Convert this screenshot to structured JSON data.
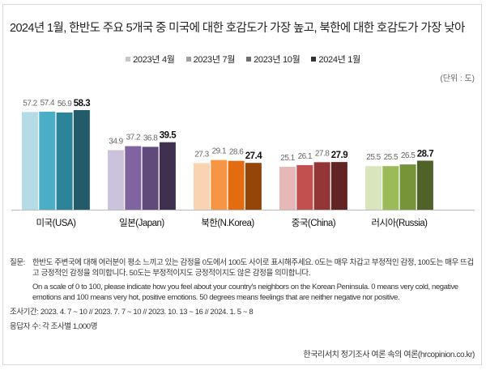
{
  "chart_data": {
    "type": "bar",
    "title": "2024년 1월, 한반도 주요 5개국 중 미국에 대한 호감도가 가장 높고, 북한에 대한 호감도가 가장 낮아",
    "unit": "(단위 : 도)",
    "categories": [
      "미국(USA)",
      "일본(Japan)",
      "북한(N.Korea)",
      "중국(China)",
      "러시아(Russia)"
    ],
    "series": [
      {
        "name": "2023년 4월",
        "values": [
          57.2,
          34.9,
          27.3,
          25.1,
          25.5
        ]
      },
      {
        "name": "2023년 7월",
        "values": [
          57.4,
          37.2,
          29.1,
          26.1,
          25.5
        ]
      },
      {
        "name": "2023년 10월",
        "values": [
          56.9,
          36.8,
          28.6,
          27.8,
          26.5
        ]
      },
      {
        "name": "2024년 1월",
        "values": [
          58.3,
          39.5,
          27.4,
          27.9,
          28.7
        ]
      }
    ],
    "ylim": [
      0,
      60
    ],
    "legend_position": "top-center",
    "legend_colors": [
      "#c8c8c8",
      "#a0a0a0",
      "#6e6e6e",
      "#333333"
    ],
    "colors": [
      [
        "#b5dce6",
        "#4aaec6",
        "#2c849b",
        "#225c6b"
      ],
      [
        "#cdc2dc",
        "#8163a0",
        "#5f4a7b",
        "#3f3050"
      ],
      [
        "#fad3b3",
        "#f69644",
        "#e36b10",
        "#964509"
      ],
      [
        "#e8b8b8",
        "#c1504f",
        "#943636",
        "#632424"
      ],
      [
        "#d8e5bd",
        "#9bbb59",
        "#779438",
        "#4f6228"
      ]
    ]
  },
  "notes": {
    "question_label": "질문:",
    "question_ko": "한반도 주변국에 대해 여러분이 평소 느끼고 있는 감정을 0도에서 100도 사이로 표시해주세요. 0도는 매우 차갑고 부정적인 감정, 100도는 매우 뜨겁고 긍정적인 감정을 의미합니다. 50도는 부정적이지도 긍정적이지도 않은 감정을 의미합니다.",
    "question_en": "On a scale of 0 to 100, please indicate how you feel about your country's neighbors on the Korean Peninsula. 0 means very cold, negative emotions and 100 means very hot, positive emotions. 50 degrees means feelings that are neither negative nor positive.",
    "period": "조사기간: 2023. 4. 7 ~ 10 // 2023. 7. 7 ~ 10 // 2023. 10. 13 ~ 16 // 2024. 1. 5 ~ 8",
    "respondents": "응답자 수: 각 조사별 1,000명"
  },
  "source": "한국리서치 정기조사 여론 속의 여론(hrcopinion.co.kr)"
}
